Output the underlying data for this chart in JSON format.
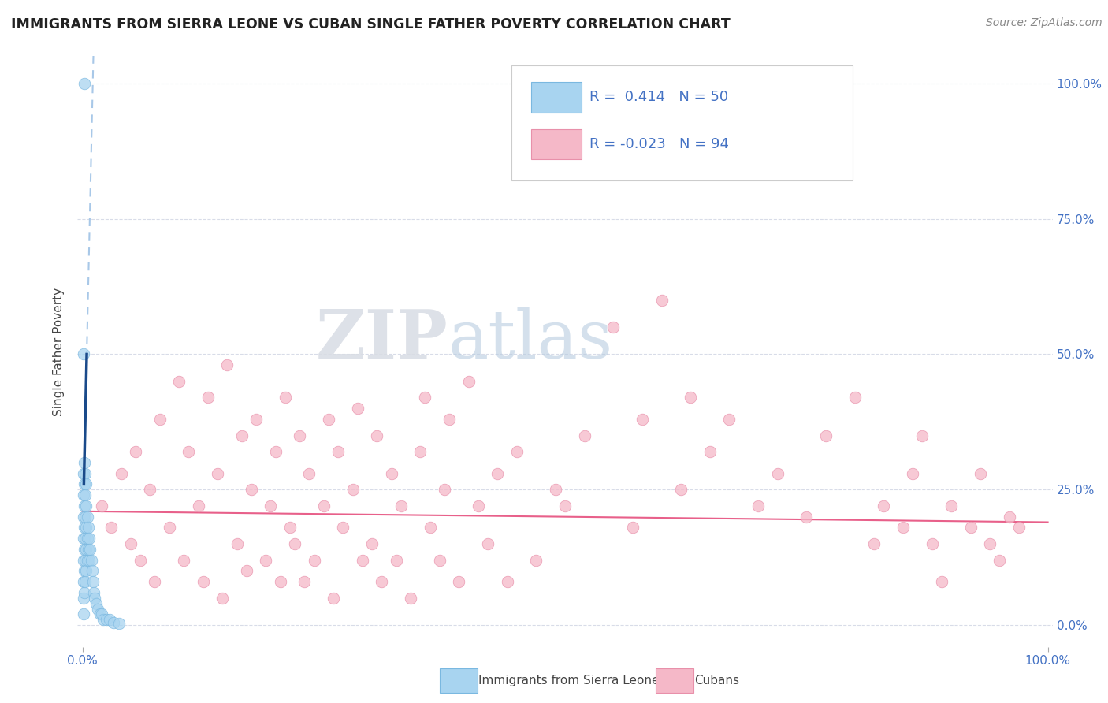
{
  "title": "IMMIGRANTS FROM SIERRA LEONE VS CUBAN SINGLE FATHER POVERTY CORRELATION CHART",
  "source": "Source: ZipAtlas.com",
  "ylabel": "Single Father Poverty",
  "watermark_zip": "ZIP",
  "watermark_atlas": "atlas",
  "legend_blue_label": "Immigrants from Sierra Leone",
  "legend_pink_label": "Cubans",
  "r_blue": 0.414,
  "n_blue": 50,
  "r_pink": -0.023,
  "n_pink": 94,
  "blue_color": "#a8d4f0",
  "blue_edge_color": "#7ab8e0",
  "pink_color": "#f5b8c8",
  "pink_edge_color": "#e890aa",
  "trend_blue_dash_color": "#a8c8e8",
  "trend_blue_solid_color": "#1a4a8a",
  "trend_pink_color": "#e8608a",
  "grid_color": "#d8dce8",
  "title_color": "#222222",
  "source_color": "#888888",
  "axis_color": "#4472C4",
  "ylabel_color": "#444444",
  "blue_scatter_x": [
    0.001,
    0.001,
    0.001,
    0.001,
    0.001,
    0.001,
    0.001,
    0.001,
    0.002,
    0.002,
    0.002,
    0.002,
    0.002,
    0.002,
    0.002,
    0.003,
    0.003,
    0.003,
    0.003,
    0.003,
    0.003,
    0.004,
    0.004,
    0.004,
    0.004,
    0.004,
    0.005,
    0.005,
    0.005,
    0.006,
    0.006,
    0.007,
    0.007,
    0.008,
    0.009,
    0.01,
    0.011,
    0.012,
    0.013,
    0.014,
    0.016,
    0.018,
    0.02,
    0.022,
    0.025,
    0.028,
    0.032,
    0.038,
    0.001,
    0.002
  ],
  "blue_scatter_y": [
    0.02,
    0.05,
    0.08,
    0.12,
    0.16,
    0.2,
    0.24,
    0.28,
    0.06,
    0.1,
    0.14,
    0.18,
    0.22,
    0.26,
    0.3,
    0.08,
    0.12,
    0.16,
    0.2,
    0.24,
    0.28,
    0.1,
    0.14,
    0.18,
    0.22,
    0.26,
    0.12,
    0.16,
    0.2,
    0.14,
    0.18,
    0.12,
    0.16,
    0.14,
    0.12,
    0.1,
    0.08,
    0.06,
    0.05,
    0.04,
    0.03,
    0.02,
    0.02,
    0.01,
    0.01,
    0.01,
    0.005,
    0.003,
    0.5,
    1.0
  ],
  "pink_scatter_x": [
    0.02,
    0.03,
    0.04,
    0.05,
    0.055,
    0.06,
    0.07,
    0.075,
    0.08,
    0.09,
    0.1,
    0.105,
    0.11,
    0.12,
    0.125,
    0.13,
    0.14,
    0.145,
    0.15,
    0.16,
    0.165,
    0.17,
    0.175,
    0.18,
    0.19,
    0.195,
    0.2,
    0.205,
    0.21,
    0.215,
    0.22,
    0.225,
    0.23,
    0.235,
    0.24,
    0.25,
    0.255,
    0.26,
    0.265,
    0.27,
    0.28,
    0.285,
    0.29,
    0.3,
    0.305,
    0.31,
    0.32,
    0.325,
    0.33,
    0.34,
    0.35,
    0.355,
    0.36,
    0.37,
    0.375,
    0.38,
    0.39,
    0.4,
    0.41,
    0.42,
    0.43,
    0.44,
    0.45,
    0.47,
    0.49,
    0.5,
    0.52,
    0.55,
    0.57,
    0.58,
    0.6,
    0.62,
    0.63,
    0.65,
    0.67,
    0.7,
    0.72,
    0.75,
    0.77,
    0.8,
    0.82,
    0.83,
    0.85,
    0.86,
    0.87,
    0.88,
    0.89,
    0.9,
    0.92,
    0.93,
    0.94,
    0.95,
    0.96,
    0.97
  ],
  "pink_scatter_y": [
    0.22,
    0.18,
    0.28,
    0.15,
    0.32,
    0.12,
    0.25,
    0.08,
    0.38,
    0.18,
    0.45,
    0.12,
    0.32,
    0.22,
    0.08,
    0.42,
    0.28,
    0.05,
    0.48,
    0.15,
    0.35,
    0.1,
    0.25,
    0.38,
    0.12,
    0.22,
    0.32,
    0.08,
    0.42,
    0.18,
    0.15,
    0.35,
    0.08,
    0.28,
    0.12,
    0.22,
    0.38,
    0.05,
    0.32,
    0.18,
    0.25,
    0.4,
    0.12,
    0.15,
    0.35,
    0.08,
    0.28,
    0.12,
    0.22,
    0.05,
    0.32,
    0.42,
    0.18,
    0.12,
    0.25,
    0.38,
    0.08,
    0.45,
    0.22,
    0.15,
    0.28,
    0.08,
    0.32,
    0.12,
    0.25,
    0.22,
    0.35,
    0.55,
    0.18,
    0.38,
    0.6,
    0.25,
    0.42,
    0.32,
    0.38,
    0.22,
    0.28,
    0.2,
    0.35,
    0.42,
    0.15,
    0.22,
    0.18,
    0.28,
    0.35,
    0.15,
    0.08,
    0.22,
    0.18,
    0.28,
    0.15,
    0.12,
    0.2,
    0.18
  ]
}
